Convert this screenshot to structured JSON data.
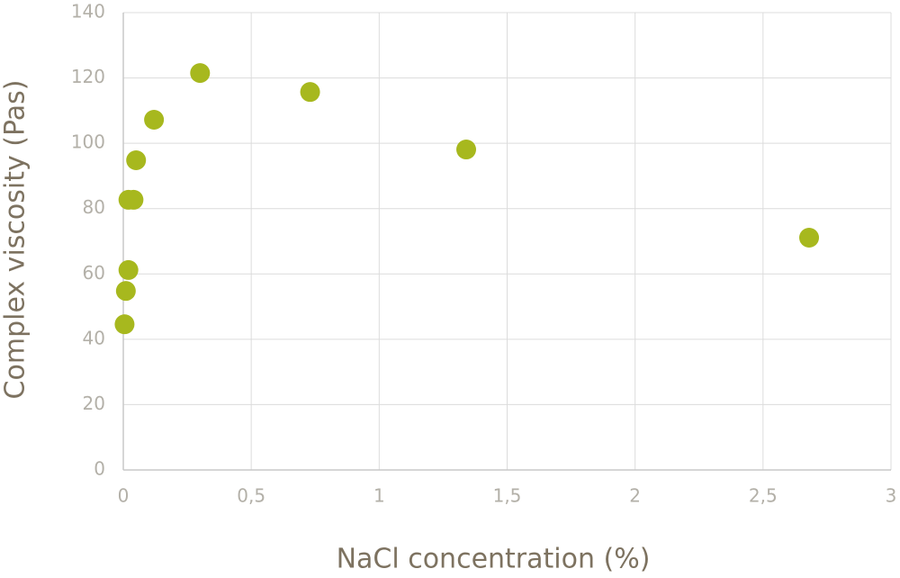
{
  "chart_data": {
    "type": "scatter",
    "x_label": "NaCl concentration (%)",
    "y_label": "Complex viscosity (Pas)",
    "series": [
      {
        "color": "#a7b81e",
        "x": [
          0.005,
          0.01,
          0.02,
          0.02,
          0.04,
          0.05,
          0.12,
          0.3,
          0.73,
          1.34,
          2.68
        ],
        "values": [
          44.6,
          54.8,
          61.2,
          82.7,
          82.7,
          94.8,
          107.2,
          121.5,
          115.7,
          98.1,
          71.1
        ]
      }
    ],
    "xlim": [
      0,
      3
    ],
    "xticks": [
      0,
      {
        "value": 0.5,
        "label": "0,5"
      },
      1,
      {
        "value": 1.5,
        "label": "1,5"
      },
      2,
      {
        "value": 2.5,
        "label": "2,5"
      },
      3
    ],
    "ylim": [
      0,
      140
    ],
    "yticks": [
      0,
      20,
      40,
      60,
      80,
      100,
      120,
      140
    ],
    "grid": true
  }
}
